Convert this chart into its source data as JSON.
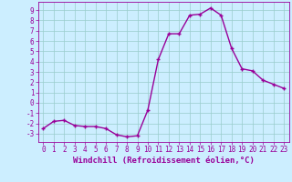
{
  "x": [
    0,
    1,
    2,
    3,
    4,
    5,
    6,
    7,
    8,
    9,
    10,
    11,
    12,
    13,
    14,
    15,
    16,
    17,
    18,
    19,
    20,
    21,
    22,
    23
  ],
  "y": [
    -2.5,
    -1.8,
    -1.7,
    -2.2,
    -2.3,
    -2.3,
    -2.5,
    -3.1,
    -3.3,
    -3.2,
    -0.7,
    4.2,
    6.7,
    6.7,
    8.5,
    8.6,
    9.2,
    8.5,
    5.3,
    3.3,
    3.1,
    2.2,
    1.8,
    1.4
  ],
  "line_color": "#990099",
  "marker": "+",
  "markersize": 3,
  "linewidth": 1.0,
  "markeredgewidth": 1.0,
  "background_color": "#cceeff",
  "grid_color": "#99cccc",
  "xlabel": "Windchill (Refroidissement éolien,°C)",
  "xlabel_fontsize": 6.5,
  "tick_color": "#990099",
  "tick_fontsize": 5.5,
  "ylim": [
    -3.8,
    9.8
  ],
  "xlim": [
    -0.5,
    23.5
  ],
  "yticks": [
    -3,
    -2,
    -1,
    0,
    1,
    2,
    3,
    4,
    5,
    6,
    7,
    8,
    9
  ],
  "xticks": [
    0,
    1,
    2,
    3,
    4,
    5,
    6,
    7,
    8,
    9,
    10,
    11,
    12,
    13,
    14,
    15,
    16,
    17,
    18,
    19,
    20,
    21,
    22,
    23
  ]
}
